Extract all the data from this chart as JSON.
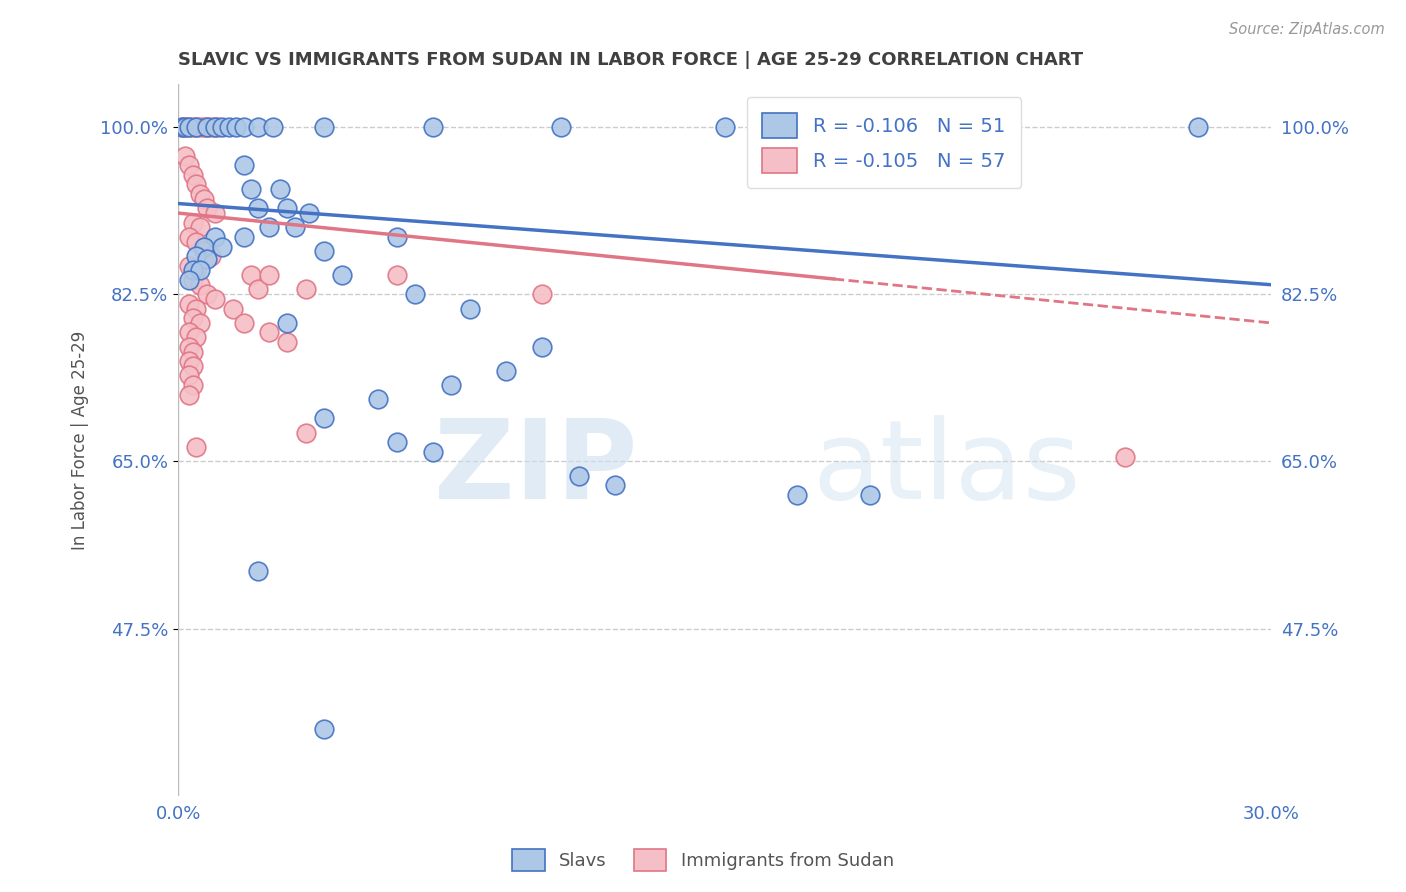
{
  "title": "SLAVIC VS IMMIGRANTS FROM SUDAN IN LABOR FORCE | AGE 25-29 CORRELATION CHART",
  "source": "Source: ZipAtlas.com",
  "ylabel": "In Labor Force | Age 25-29",
  "legend_blue_label": "Slavs",
  "legend_pink_label": "Immigrants from Sudan",
  "r_blue": -0.106,
  "n_blue": 51,
  "r_pink": -0.105,
  "n_pink": 57,
  "xmin": 0.0,
  "xmax": 0.3,
  "ymin": 0.3,
  "ymax": 1.045,
  "yticks": [
    0.475,
    0.65,
    0.825,
    1.0
  ],
  "ytick_labels": [
    "47.5%",
    "65.0%",
    "82.5%",
    "100.0%"
  ],
  "xticks": [
    0.0,
    0.05,
    0.1,
    0.15,
    0.2,
    0.25,
    0.3
  ],
  "xtick_labels": [
    "0.0%",
    "",
    "",
    "",
    "",
    "",
    "30.0%"
  ],
  "blue_scatter": [
    [
      0.001,
      1.0
    ],
    [
      0.002,
      1.0
    ],
    [
      0.003,
      1.0
    ],
    [
      0.005,
      1.0
    ],
    [
      0.008,
      1.0
    ],
    [
      0.01,
      1.0
    ],
    [
      0.012,
      1.0
    ],
    [
      0.014,
      1.0
    ],
    [
      0.016,
      1.0
    ],
    [
      0.018,
      1.0
    ],
    [
      0.022,
      1.0
    ],
    [
      0.026,
      1.0
    ],
    [
      0.04,
      1.0
    ],
    [
      0.07,
      1.0
    ],
    [
      0.105,
      1.0
    ],
    [
      0.15,
      1.0
    ],
    [
      0.28,
      1.0
    ],
    [
      0.018,
      0.96
    ],
    [
      0.02,
      0.935
    ],
    [
      0.028,
      0.935
    ],
    [
      0.022,
      0.915
    ],
    [
      0.03,
      0.915
    ],
    [
      0.036,
      0.91
    ],
    [
      0.025,
      0.895
    ],
    [
      0.032,
      0.895
    ],
    [
      0.01,
      0.885
    ],
    [
      0.018,
      0.885
    ],
    [
      0.007,
      0.875
    ],
    [
      0.012,
      0.875
    ],
    [
      0.005,
      0.865
    ],
    [
      0.008,
      0.862
    ],
    [
      0.004,
      0.85
    ],
    [
      0.006,
      0.85
    ],
    [
      0.003,
      0.84
    ],
    [
      0.06,
      0.885
    ],
    [
      0.04,
      0.87
    ],
    [
      0.045,
      0.845
    ],
    [
      0.065,
      0.825
    ],
    [
      0.08,
      0.81
    ],
    [
      0.03,
      0.795
    ],
    [
      0.1,
      0.77
    ],
    [
      0.09,
      0.745
    ],
    [
      0.075,
      0.73
    ],
    [
      0.055,
      0.715
    ],
    [
      0.04,
      0.695
    ],
    [
      0.06,
      0.67
    ],
    [
      0.07,
      0.66
    ],
    [
      0.11,
      0.635
    ],
    [
      0.12,
      0.625
    ],
    [
      0.17,
      0.615
    ],
    [
      0.19,
      0.615
    ],
    [
      0.022,
      0.535
    ],
    [
      0.04,
      0.37
    ]
  ],
  "pink_scatter": [
    [
      0.001,
      1.0
    ],
    [
      0.002,
      1.0
    ],
    [
      0.003,
      1.0
    ],
    [
      0.004,
      1.0
    ],
    [
      0.005,
      1.0
    ],
    [
      0.006,
      1.0
    ],
    [
      0.007,
      1.0
    ],
    [
      0.008,
      1.0
    ],
    [
      0.009,
      1.0
    ],
    [
      0.01,
      1.0
    ],
    [
      0.011,
      1.0
    ],
    [
      0.002,
      0.97
    ],
    [
      0.003,
      0.96
    ],
    [
      0.004,
      0.95
    ],
    [
      0.005,
      0.94
    ],
    [
      0.006,
      0.93
    ],
    [
      0.007,
      0.925
    ],
    [
      0.008,
      0.915
    ],
    [
      0.01,
      0.91
    ],
    [
      0.004,
      0.9
    ],
    [
      0.006,
      0.895
    ],
    [
      0.003,
      0.885
    ],
    [
      0.005,
      0.88
    ],
    [
      0.007,
      0.87
    ],
    [
      0.009,
      0.865
    ],
    [
      0.003,
      0.855
    ],
    [
      0.005,
      0.85
    ],
    [
      0.004,
      0.84
    ],
    [
      0.006,
      0.835
    ],
    [
      0.008,
      0.825
    ],
    [
      0.01,
      0.82
    ],
    [
      0.003,
      0.815
    ],
    [
      0.005,
      0.81
    ],
    [
      0.004,
      0.8
    ],
    [
      0.006,
      0.795
    ],
    [
      0.003,
      0.785
    ],
    [
      0.005,
      0.78
    ],
    [
      0.003,
      0.77
    ],
    [
      0.004,
      0.765
    ],
    [
      0.003,
      0.755
    ],
    [
      0.004,
      0.75
    ],
    [
      0.003,
      0.74
    ],
    [
      0.004,
      0.73
    ],
    [
      0.003,
      0.72
    ],
    [
      0.02,
      0.845
    ],
    [
      0.022,
      0.83
    ],
    [
      0.015,
      0.81
    ],
    [
      0.018,
      0.795
    ],
    [
      0.025,
      0.845
    ],
    [
      0.035,
      0.83
    ],
    [
      0.025,
      0.785
    ],
    [
      0.03,
      0.775
    ],
    [
      0.06,
      0.845
    ],
    [
      0.1,
      0.825
    ],
    [
      0.005,
      0.665
    ],
    [
      0.035,
      0.68
    ],
    [
      0.26,
      0.655
    ]
  ],
  "blue_line_x": [
    0.0,
    0.3
  ],
  "blue_line_y": [
    0.92,
    0.835
  ],
  "pink_line_x": [
    0.0,
    0.3
  ],
  "pink_line_y": [
    0.91,
    0.795
  ],
  "pink_line_solid_end": 0.18,
  "background_color": "#ffffff",
  "scatter_blue_color": "#adc8e6",
  "scatter_pink_color": "#f5bfc7",
  "line_blue_color": "#4472c4",
  "line_pink_color": "#e07585",
  "grid_color": "#cccccc",
  "axis_label_color": "#4472c4",
  "title_color": "#404040"
}
